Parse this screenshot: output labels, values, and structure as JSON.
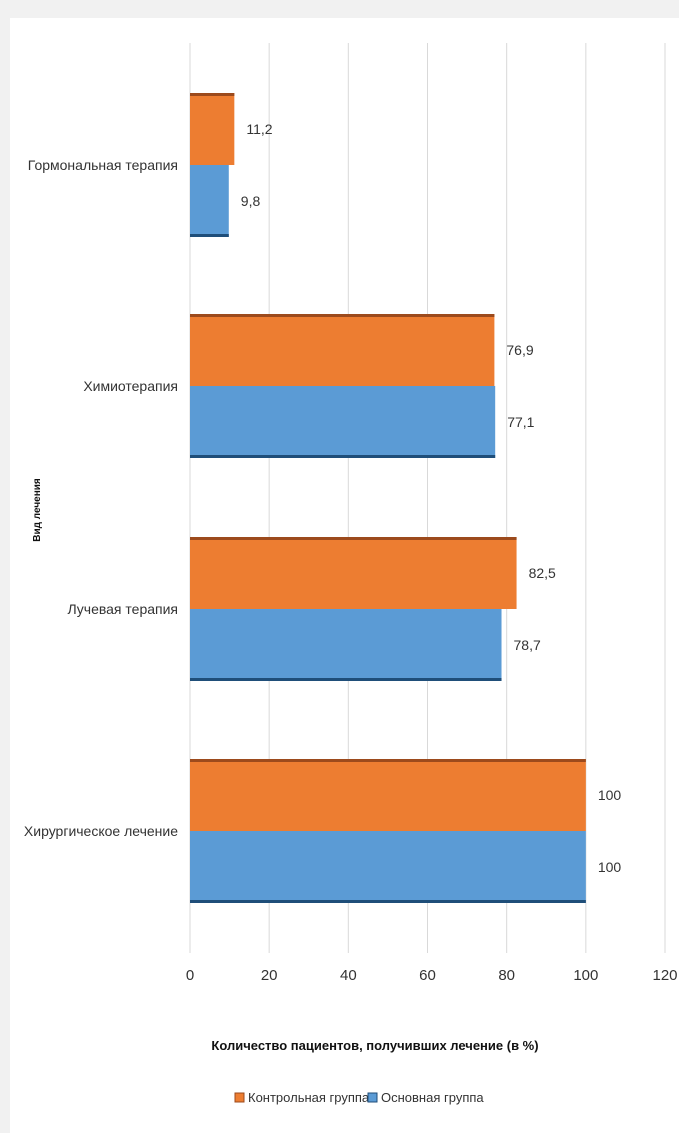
{
  "chart_data": {
    "type": "bar",
    "orientation": "horizontal",
    "categories": [
      "Гормональная терапия",
      "Химиотерапия",
      "Лучевая терапия",
      "Хирургическое лечение"
    ],
    "series": [
      {
        "name": "Контрольная группа",
        "color": "#ed7d31",
        "values": [
          11.2,
          76.9,
          82.5,
          100
        ],
        "labels": [
          "11,2",
          "76,9",
          "82,5",
          "100"
        ]
      },
      {
        "name": "Основная группа",
        "color": "#5b9bd5",
        "values": [
          9.8,
          77.1,
          78.7,
          100
        ],
        "labels": [
          "9,8",
          "77,1",
          "78,7",
          "100"
        ]
      }
    ],
    "xlabel": "Количество пациентов, получивших лечение (в %)",
    "ylabel": "Вид лечения",
    "xlim": [
      0,
      120
    ],
    "xticks": [
      "0",
      "20",
      "40",
      "60",
      "80",
      "100",
      "120"
    ],
    "grid": "vertical",
    "legend_position": "bottom"
  }
}
